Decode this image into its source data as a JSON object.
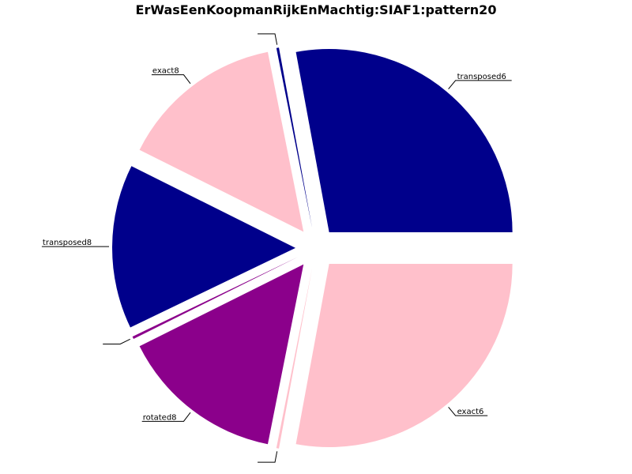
{
  "chart_data": {
    "type": "pie",
    "title": "ErWasEenKoopmanRijkEnMachtig:SIAF1:pattern20",
    "slices": [
      {
        "label": "transposed6",
        "value": 0.25,
        "color": "#00008b"
      },
      {
        "label": "",
        "value": 0.002,
        "color": "#00008b"
      },
      {
        "label": "exact8",
        "value": 0.13,
        "color": "#ffc0cb"
      },
      {
        "label": "transposed8",
        "value": 0.13,
        "color": "#00008b"
      },
      {
        "label": "",
        "value": 0.002,
        "color": "#8b008b"
      },
      {
        "label": "rotated8",
        "value": 0.13,
        "color": "#8b008b"
      },
      {
        "label": "",
        "value": 0.002,
        "color": "#ffc0cb"
      },
      {
        "label": "exact6",
        "value": 0.25,
        "color": "#ffc0cb"
      }
    ],
    "legend": "none"
  }
}
